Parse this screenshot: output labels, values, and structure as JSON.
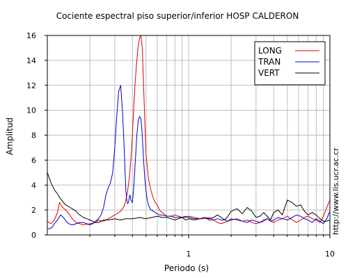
{
  "chart_data": {
    "type": "line",
    "title": "Cociente espectral piso superior/inferior  HOSP CALDERON",
    "xlabel": "Periodo (s)",
    "ylabel": "Amplitud",
    "side_text": "http://www.lis.ucr.ac.cr",
    "x_scale": "log",
    "xlim": [
      0.1,
      10
    ],
    "ylim": [
      0,
      16
    ],
    "y_ticks": [
      0,
      2,
      4,
      6,
      8,
      10,
      12,
      14,
      16
    ],
    "y_tick_labels": [
      "0",
      "2",
      "4",
      "6",
      "8",
      "10",
      "12",
      "14",
      "16"
    ],
    "x_major_ticks": [
      1,
      10
    ],
    "x_tick_labels": [
      "1",
      "10"
    ],
    "x_minor_ticks": [
      0.2,
      0.3,
      0.4,
      0.5,
      0.6,
      0.7,
      0.8,
      0.9,
      2,
      3,
      4,
      5,
      6,
      7,
      8,
      9
    ],
    "grid": true,
    "legend_position": "top-right",
    "series": [
      {
        "name": "LONG",
        "color": "#dd0000",
        "x": [
          0.1,
          0.106,
          0.112,
          0.118,
          0.122,
          0.128,
          0.135,
          0.142,
          0.15,
          0.16,
          0.17,
          0.18,
          0.19,
          0.2,
          0.21,
          0.22,
          0.23,
          0.24,
          0.25,
          0.26,
          0.27,
          0.28,
          0.29,
          0.3,
          0.31,
          0.32,
          0.33,
          0.34,
          0.35,
          0.36,
          0.37,
          0.38,
          0.39,
          0.4,
          0.41,
          0.42,
          0.43,
          0.44,
          0.45,
          0.46,
          0.47,
          0.48,
          0.49,
          0.5,
          0.52,
          0.54,
          0.56,
          0.58,
          0.6,
          0.62,
          0.65,
          0.7,
          0.75,
          0.8,
          0.85,
          0.9,
          0.95,
          1.0,
          1.1,
          1.2,
          1.3,
          1.4,
          1.5,
          1.6,
          1.7,
          1.8,
          1.9,
          2.0,
          2.2,
          2.4,
          2.6,
          2.8,
          3.0,
          3.2,
          3.4,
          3.6,
          3.8,
          4.0,
          4.3,
          4.6,
          5.0,
          5.4,
          5.8,
          6.2,
          6.6,
          7.0,
          7.5,
          8.0,
          8.5,
          9.0,
          9.5,
          10.0
        ],
        "y": [
          1.1,
          0.9,
          1.2,
          1.8,
          2.6,
          2.2,
          2.0,
          1.7,
          1.3,
          1.0,
          0.9,
          0.8,
          0.85,
          0.9,
          0.95,
          1.0,
          1.2,
          1.1,
          1.1,
          1.2,
          1.3,
          1.4,
          1.5,
          1.6,
          1.7,
          1.8,
          1.9,
          2.1,
          2.3,
          2.8,
          3.5,
          4.5,
          6.0,
          8.0,
          10.5,
          12.5,
          14.0,
          15.2,
          15.8,
          16.0,
          15.0,
          12.0,
          9.0,
          6.5,
          4.5,
          3.6,
          3.0,
          2.6,
          2.4,
          2.0,
          1.8,
          1.5,
          1.5,
          1.6,
          1.5,
          1.4,
          1.4,
          1.5,
          1.4,
          1.3,
          1.3,
          1.4,
          1.2,
          1.0,
          0.9,
          1.0,
          1.1,
          1.3,
          1.2,
          1.1,
          1.2,
          1.0,
          0.9,
          1.0,
          1.1,
          1.3,
          1.1,
          1.0,
          1.2,
          1.3,
          1.5,
          1.2,
          1.0,
          1.2,
          1.4,
          1.5,
          1.3,
          1.2,
          1.0,
          1.5,
          2.2,
          2.8
        ]
      },
      {
        "name": "TRAN",
        "color": "#0000cc",
        "x": [
          0.1,
          0.104,
          0.108,
          0.112,
          0.118,
          0.124,
          0.13,
          0.136,
          0.142,
          0.15,
          0.16,
          0.17,
          0.18,
          0.19,
          0.2,
          0.21,
          0.22,
          0.23,
          0.24,
          0.25,
          0.26,
          0.27,
          0.28,
          0.29,
          0.3,
          0.31,
          0.32,
          0.33,
          0.34,
          0.35,
          0.355,
          0.36,
          0.365,
          0.37,
          0.375,
          0.38,
          0.385,
          0.39,
          0.4,
          0.41,
          0.42,
          0.43,
          0.44,
          0.45,
          0.46,
          0.47,
          0.48,
          0.49,
          0.5,
          0.51,
          0.52,
          0.53,
          0.54,
          0.55,
          0.56,
          0.58,
          0.6,
          0.62,
          0.65,
          0.7,
          0.75,
          0.8,
          0.85,
          0.9,
          0.95,
          1.0,
          1.1,
          1.2,
          1.3,
          1.4,
          1.5,
          1.6,
          1.7,
          1.8,
          1.9,
          2.0,
          2.2,
          2.4,
          2.6,
          2.8,
          3.0,
          3.2,
          3.4,
          3.6,
          3.8,
          4.0,
          4.3,
          4.6,
          5.0,
          5.4,
          5.8,
          6.2,
          6.6,
          7.0,
          7.5,
          8.0,
          8.5,
          9.0,
          9.5,
          10.0
        ],
        "y": [
          0.5,
          0.5,
          0.6,
          0.9,
          1.2,
          1.6,
          1.4,
          1.1,
          0.9,
          0.8,
          0.9,
          1.0,
          1.0,
          0.9,
          0.8,
          0.9,
          1.1,
          1.3,
          1.6,
          2.2,
          3.2,
          3.8,
          4.2,
          5.0,
          7.0,
          9.5,
          11.5,
          12.0,
          10.0,
          7.0,
          5.0,
          3.5,
          2.8,
          2.5,
          2.6,
          3.0,
          3.2,
          2.8,
          2.6,
          4.0,
          6.0,
          8.0,
          9.2,
          9.5,
          9.3,
          8.0,
          6.0,
          4.5,
          3.5,
          2.8,
          2.4,
          2.2,
          2.0,
          2.0,
          1.9,
          1.8,
          1.7,
          1.6,
          1.6,
          1.5,
          1.5,
          1.4,
          1.4,
          1.4,
          1.5,
          1.4,
          1.3,
          1.3,
          1.4,
          1.2,
          1.2,
          1.3,
          1.2,
          1.2,
          1.1,
          1.2,
          1.3,
          1.1,
          1.0,
          1.2,
          1.1,
          1.0,
          1.2,
          1.3,
          1.1,
          1.2,
          1.4,
          1.3,
          1.2,
          1.4,
          1.6,
          1.5,
          1.3,
          1.2,
          1.0,
          1.3,
          1.1,
          0.9,
          1.3,
          1.9
        ]
      },
      {
        "name": "VERT",
        "color": "#000000",
        "x": [
          0.1,
          0.103,
          0.106,
          0.11,
          0.114,
          0.118,
          0.122,
          0.126,
          0.13,
          0.135,
          0.14,
          0.145,
          0.15,
          0.155,
          0.16,
          0.165,
          0.17,
          0.175,
          0.18,
          0.19,
          0.2,
          0.21,
          0.22,
          0.23,
          0.24,
          0.25,
          0.27,
          0.3,
          0.33,
          0.36,
          0.4,
          0.45,
          0.5,
          0.55,
          0.6,
          0.65,
          0.7,
          0.75,
          0.8,
          0.85,
          0.9,
          0.95,
          1.0,
          1.1,
          1.2,
          1.3,
          1.4,
          1.5,
          1.6,
          1.7,
          1.8,
          1.9,
          2.0,
          2.2,
          2.4,
          2.6,
          2.8,
          3.0,
          3.2,
          3.4,
          3.6,
          3.8,
          4.0,
          4.3,
          4.6,
          5.0,
          5.4,
          5.8,
          6.2,
          6.6,
          7.0,
          7.5,
          8.0,
          8.5,
          9.0,
          9.5,
          10.0
        ],
        "y": [
          5.0,
          4.6,
          4.2,
          3.8,
          3.5,
          3.3,
          3.0,
          2.8,
          2.6,
          2.4,
          2.3,
          2.2,
          2.1,
          2.0,
          1.9,
          1.7,
          1.6,
          1.5,
          1.4,
          1.3,
          1.2,
          1.1,
          1.0,
          1.0,
          1.1,
          1.2,
          1.2,
          1.3,
          1.2,
          1.3,
          1.3,
          1.4,
          1.3,
          1.4,
          1.5,
          1.4,
          1.4,
          1.3,
          1.2,
          1.3,
          1.4,
          1.2,
          1.3,
          1.2,
          1.3,
          1.4,
          1.3,
          1.4,
          1.6,
          1.4,
          1.2,
          1.5,
          1.9,
          2.1,
          1.7,
          2.2,
          1.9,
          1.4,
          1.5,
          1.8,
          1.5,
          1.2,
          1.8,
          2.0,
          1.6,
          2.8,
          2.6,
          2.3,
          2.4,
          1.9,
          1.6,
          1.8,
          1.6,
          1.3,
          1.1,
          1.1,
          1.2
        ]
      }
    ]
  }
}
